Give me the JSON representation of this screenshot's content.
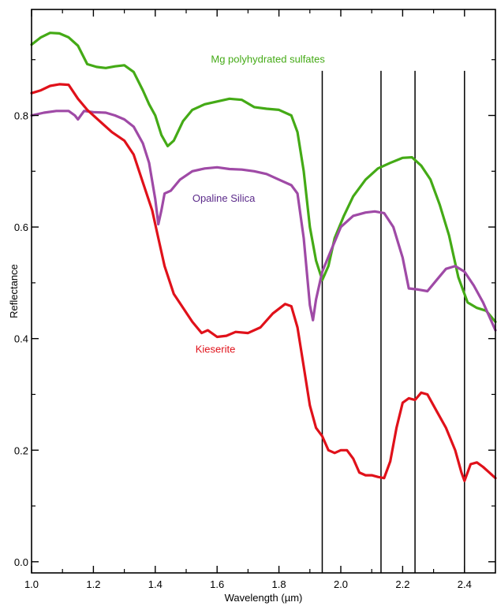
{
  "chart_data": {
    "type": "line",
    "xlabel": "Wavelength (µm)",
    "ylabel": "Reflectance",
    "xlim": [
      1.0,
      2.5
    ],
    "ylim": [
      -0.02,
      0.99
    ],
    "x_ticks": [
      "1.0",
      "1.2",
      "1.4",
      "1.6",
      "1.8",
      "2.0",
      "2.2",
      "2.4"
    ],
    "x_tick_values": [
      1.0,
      1.2,
      1.4,
      1.6,
      1.8,
      2.0,
      2.2,
      2.4
    ],
    "y_ticks": [
      "0.0",
      "0.2",
      "0.4",
      "0.6",
      "0.8"
    ],
    "y_tick_values": [
      0.0,
      0.2,
      0.4,
      0.6,
      0.8
    ],
    "grid": false,
    "vertical_lines": [
      1.94,
      2.13,
      2.24,
      2.4
    ],
    "vertical_line_top": 0.88,
    "series": [
      {
        "name": "Mg polyhydrated sulfates",
        "color": "#44aa16",
        "label_anchor": [
          1.58,
          0.895
        ],
        "points": [
          [
            1.0,
            0.927
          ],
          [
            1.03,
            0.94
          ],
          [
            1.06,
            0.948
          ],
          [
            1.09,
            0.947
          ],
          [
            1.12,
            0.94
          ],
          [
            1.15,
            0.925
          ],
          [
            1.18,
            0.892
          ],
          [
            1.21,
            0.887
          ],
          [
            1.24,
            0.885
          ],
          [
            1.27,
            0.888
          ],
          [
            1.3,
            0.89
          ],
          [
            1.33,
            0.878
          ],
          [
            1.36,
            0.845
          ],
          [
            1.38,
            0.82
          ],
          [
            1.4,
            0.8
          ],
          [
            1.42,
            0.765
          ],
          [
            1.44,
            0.745
          ],
          [
            1.46,
            0.755
          ],
          [
            1.49,
            0.79
          ],
          [
            1.52,
            0.81
          ],
          [
            1.56,
            0.82
          ],
          [
            1.6,
            0.825
          ],
          [
            1.64,
            0.83
          ],
          [
            1.68,
            0.828
          ],
          [
            1.72,
            0.815
          ],
          [
            1.76,
            0.812
          ],
          [
            1.8,
            0.81
          ],
          [
            1.84,
            0.8
          ],
          [
            1.86,
            0.77
          ],
          [
            1.88,
            0.7
          ],
          [
            1.9,
            0.6
          ],
          [
            1.92,
            0.54
          ],
          [
            1.94,
            0.505
          ],
          [
            1.96,
            0.53
          ],
          [
            1.98,
            0.58
          ],
          [
            2.01,
            0.62
          ],
          [
            2.04,
            0.655
          ],
          [
            2.08,
            0.685
          ],
          [
            2.12,
            0.705
          ],
          [
            2.16,
            0.715
          ],
          [
            2.2,
            0.724
          ],
          [
            2.23,
            0.725
          ],
          [
            2.26,
            0.71
          ],
          [
            2.29,
            0.685
          ],
          [
            2.32,
            0.64
          ],
          [
            2.35,
            0.585
          ],
          [
            2.38,
            0.51
          ],
          [
            2.41,
            0.465
          ],
          [
            2.44,
            0.455
          ],
          [
            2.47,
            0.45
          ],
          [
            2.5,
            0.43
          ]
        ]
      },
      {
        "name": "Opaline Silica",
        "color": "#9f4aa6",
        "label_anchor": [
          1.52,
          0.645
        ],
        "points": [
          [
            1.0,
            0.8
          ],
          [
            1.04,
            0.805
          ],
          [
            1.08,
            0.808
          ],
          [
            1.12,
            0.808
          ],
          [
            1.14,
            0.8
          ],
          [
            1.15,
            0.793
          ],
          [
            1.17,
            0.808
          ],
          [
            1.2,
            0.806
          ],
          [
            1.24,
            0.805
          ],
          [
            1.27,
            0.8
          ],
          [
            1.3,
            0.793
          ],
          [
            1.33,
            0.78
          ],
          [
            1.36,
            0.75
          ],
          [
            1.38,
            0.715
          ],
          [
            1.4,
            0.65
          ],
          [
            1.41,
            0.605
          ],
          [
            1.42,
            0.63
          ],
          [
            1.43,
            0.66
          ],
          [
            1.45,
            0.665
          ],
          [
            1.48,
            0.685
          ],
          [
            1.52,
            0.7
          ],
          [
            1.56,
            0.705
          ],
          [
            1.6,
            0.707
          ],
          [
            1.64,
            0.704
          ],
          [
            1.68,
            0.703
          ],
          [
            1.72,
            0.7
          ],
          [
            1.76,
            0.695
          ],
          [
            1.8,
            0.685
          ],
          [
            1.84,
            0.675
          ],
          [
            1.86,
            0.66
          ],
          [
            1.88,
            0.58
          ],
          [
            1.9,
            0.46
          ],
          [
            1.91,
            0.433
          ],
          [
            1.92,
            0.47
          ],
          [
            1.94,
            0.52
          ],
          [
            1.97,
            0.56
          ],
          [
            2.0,
            0.6
          ],
          [
            2.04,
            0.62
          ],
          [
            2.08,
            0.626
          ],
          [
            2.11,
            0.628
          ],
          [
            2.14,
            0.625
          ],
          [
            2.17,
            0.6
          ],
          [
            2.2,
            0.545
          ],
          [
            2.22,
            0.49
          ],
          [
            2.25,
            0.488
          ],
          [
            2.28,
            0.485
          ],
          [
            2.31,
            0.505
          ],
          [
            2.34,
            0.525
          ],
          [
            2.37,
            0.53
          ],
          [
            2.4,
            0.52
          ],
          [
            2.43,
            0.495
          ],
          [
            2.46,
            0.465
          ],
          [
            2.5,
            0.415
          ]
        ]
      },
      {
        "name": "Kieserite",
        "color": "#e0111a",
        "label_anchor": [
          1.53,
          0.375
        ],
        "points": [
          [
            1.0,
            0.84
          ],
          [
            1.03,
            0.845
          ],
          [
            1.06,
            0.853
          ],
          [
            1.09,
            0.856
          ],
          [
            1.12,
            0.855
          ],
          [
            1.15,
            0.83
          ],
          [
            1.18,
            0.81
          ],
          [
            1.22,
            0.79
          ],
          [
            1.26,
            0.77
          ],
          [
            1.3,
            0.755
          ],
          [
            1.33,
            0.73
          ],
          [
            1.36,
            0.68
          ],
          [
            1.39,
            0.63
          ],
          [
            1.41,
            0.58
          ],
          [
            1.43,
            0.53
          ],
          [
            1.46,
            0.48
          ],
          [
            1.49,
            0.455
          ],
          [
            1.52,
            0.43
          ],
          [
            1.55,
            0.41
          ],
          [
            1.57,
            0.415
          ],
          [
            1.6,
            0.403
          ],
          [
            1.63,
            0.405
          ],
          [
            1.66,
            0.412
          ],
          [
            1.7,
            0.41
          ],
          [
            1.74,
            0.42
          ],
          [
            1.78,
            0.445
          ],
          [
            1.82,
            0.462
          ],
          [
            1.84,
            0.458
          ],
          [
            1.86,
            0.42
          ],
          [
            1.88,
            0.35
          ],
          [
            1.9,
            0.28
          ],
          [
            1.92,
            0.24
          ],
          [
            1.94,
            0.225
          ],
          [
            1.96,
            0.2
          ],
          [
            1.98,
            0.195
          ],
          [
            2.0,
            0.2
          ],
          [
            2.02,
            0.2
          ],
          [
            2.04,
            0.185
          ],
          [
            2.06,
            0.16
          ],
          [
            2.08,
            0.155
          ],
          [
            2.1,
            0.155
          ],
          [
            2.12,
            0.152
          ],
          [
            2.14,
            0.15
          ],
          [
            2.16,
            0.18
          ],
          [
            2.18,
            0.24
          ],
          [
            2.2,
            0.285
          ],
          [
            2.22,
            0.293
          ],
          [
            2.24,
            0.29
          ],
          [
            2.26,
            0.303
          ],
          [
            2.28,
            0.3
          ],
          [
            2.31,
            0.27
          ],
          [
            2.34,
            0.24
          ],
          [
            2.37,
            0.2
          ],
          [
            2.39,
            0.16
          ],
          [
            2.4,
            0.145
          ],
          [
            2.42,
            0.175
          ],
          [
            2.44,
            0.178
          ],
          [
            2.46,
            0.17
          ],
          [
            2.48,
            0.16
          ],
          [
            2.5,
            0.15
          ]
        ]
      }
    ]
  }
}
